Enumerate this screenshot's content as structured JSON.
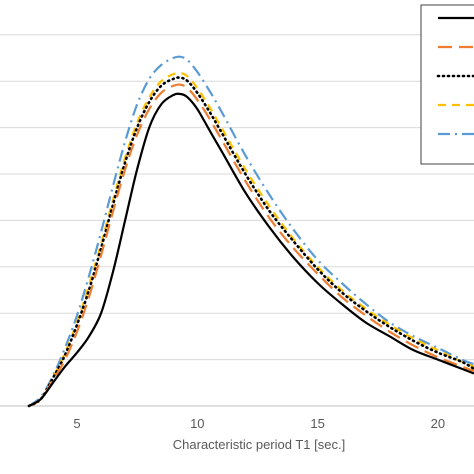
{
  "chart_data": {
    "type": "line",
    "xlabel": "Characteristic period T1 [sec.]",
    "ylabel": "",
    "title": "",
    "xlim": [
      1.8,
      21.5
    ],
    "ylim": [
      0,
      1.75
    ],
    "x_ticks": [
      5,
      10,
      15,
      20
    ],
    "y_gridlines": [
      0.2,
      0.4,
      0.6,
      0.8,
      1.0,
      1.2,
      1.4,
      1.6
    ],
    "grid": "horizontal",
    "legend_position": "top-right",
    "series": [
      {
        "color": "#000000",
        "dash": "solid",
        "x": [
          3.0,
          3.5,
          4.0,
          4.5,
          5.0,
          5.5,
          6.0,
          6.5,
          7.0,
          7.5,
          8.0,
          8.5,
          9.0,
          9.3,
          9.6,
          10.0,
          10.5,
          11.0,
          12.0,
          13.0,
          14.0,
          15.0,
          16.0,
          17.0,
          18.0,
          19.0,
          20.0,
          21.0,
          21.5
        ],
        "y": [
          0.0,
          0.03,
          0.1,
          0.17,
          0.23,
          0.3,
          0.4,
          0.58,
          0.8,
          1.02,
          1.2,
          1.3,
          1.34,
          1.345,
          1.33,
          1.28,
          1.19,
          1.1,
          0.92,
          0.77,
          0.64,
          0.53,
          0.44,
          0.36,
          0.3,
          0.24,
          0.2,
          0.16,
          0.14
        ]
      },
      {
        "color": "#ED7D31",
        "dash": "long-dash",
        "x": [
          3.0,
          3.5,
          4.0,
          4.5,
          5.0,
          5.5,
          6.0,
          6.5,
          7.0,
          7.5,
          8.0,
          8.5,
          9.0,
          9.3,
          9.6,
          10.0,
          10.5,
          11.0,
          12.0,
          13.0,
          14.0,
          15.0,
          16.0,
          17.0,
          18.0,
          19.0,
          20.0,
          21.0,
          21.5
        ],
        "y": [
          0.0,
          0.03,
          0.11,
          0.2,
          0.32,
          0.47,
          0.65,
          0.84,
          1.02,
          1.17,
          1.28,
          1.35,
          1.38,
          1.385,
          1.37,
          1.32,
          1.24,
          1.15,
          0.97,
          0.81,
          0.68,
          0.57,
          0.47,
          0.39,
          0.32,
          0.26,
          0.21,
          0.17,
          0.15
        ]
      },
      {
        "color": "#000000",
        "dash": "dotted",
        "x": [
          3.0,
          3.5,
          4.0,
          4.5,
          5.0,
          5.5,
          6.0,
          6.5,
          7.0,
          7.5,
          8.0,
          8.5,
          9.0,
          9.3,
          9.6,
          10.0,
          10.5,
          11.0,
          12.0,
          13.0,
          14.0,
          15.0,
          16.0,
          17.0,
          18.0,
          19.0,
          20.0,
          21.0,
          21.5
        ],
        "y": [
          0.0,
          0.03,
          0.12,
          0.22,
          0.35,
          0.5,
          0.68,
          0.87,
          1.05,
          1.2,
          1.31,
          1.38,
          1.41,
          1.415,
          1.4,
          1.35,
          1.27,
          1.18,
          1.0,
          0.84,
          0.71,
          0.59,
          0.49,
          0.41,
          0.34,
          0.28,
          0.23,
          0.19,
          0.16
        ]
      },
      {
        "color": "#FFC000",
        "dash": "dashed",
        "x": [
          3.0,
          3.5,
          4.0,
          4.5,
          5.0,
          5.5,
          6.0,
          6.5,
          7.0,
          7.5,
          8.0,
          8.5,
          9.0,
          9.3,
          9.6,
          10.0,
          10.5,
          11.0,
          12.0,
          13.0,
          14.0,
          15.0,
          16.0,
          17.0,
          18.0,
          19.0,
          20.0,
          21.0,
          21.5
        ],
        "y": [
          0.0,
          0.03,
          0.12,
          0.23,
          0.36,
          0.52,
          0.7,
          0.89,
          1.07,
          1.22,
          1.33,
          1.4,
          1.43,
          1.435,
          1.42,
          1.37,
          1.29,
          1.2,
          1.02,
          0.86,
          0.72,
          0.6,
          0.5,
          0.42,
          0.35,
          0.29,
          0.24,
          0.19,
          0.17
        ]
      },
      {
        "color": "#5B9BD5",
        "dash": "dash-dot",
        "x": [
          3.0,
          3.5,
          4.0,
          4.5,
          5.0,
          5.5,
          6.0,
          6.5,
          7.0,
          7.5,
          8.0,
          8.5,
          9.0,
          9.3,
          9.6,
          10.0,
          10.5,
          11.0,
          12.0,
          13.0,
          14.0,
          15.0,
          16.0,
          17.0,
          18.0,
          19.0,
          20.0,
          21.0,
          21.5
        ],
        "y": [
          0.0,
          0.04,
          0.13,
          0.25,
          0.39,
          0.56,
          0.75,
          0.95,
          1.14,
          1.3,
          1.41,
          1.47,
          1.5,
          1.505,
          1.49,
          1.44,
          1.36,
          1.27,
          1.08,
          0.91,
          0.76,
          0.63,
          0.53,
          0.44,
          0.36,
          0.3,
          0.25,
          0.2,
          0.18
        ]
      }
    ]
  }
}
